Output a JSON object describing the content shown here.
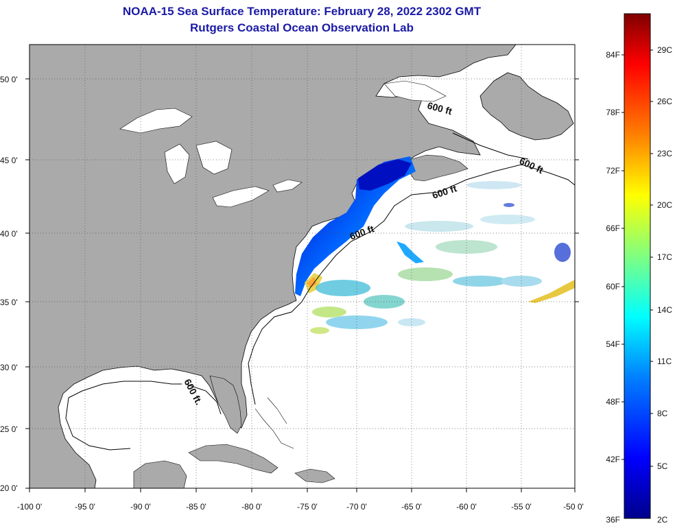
{
  "title": "NOAA-15 Sea Surface Temperature:  February 28, 2022 2302 GMT",
  "subtitle": "Rutgers Coastal Ocean Observation Lab",
  "map": {
    "lon_ticks": [
      "-100 0'",
      "-95 0'",
      "-90 0'",
      "-85 0'",
      "-80 0'",
      "-75 0'",
      "-70 0'",
      "-65 0'",
      "-60 0'",
      "-55 0'",
      "-50 0'"
    ],
    "lat_ticks": [
      "50 0'",
      "45 0'",
      "40 0'",
      "35 0'",
      "30 0'",
      "25 0'",
      "20 0'"
    ],
    "contour_labels": [
      "600 ft",
      "600 ft",
      "600 ft",
      "600 ft",
      "600 ft."
    ],
    "colors": {
      "land": "#aaaaaa",
      "ocean_nodata": "#ffffff",
      "grid": "#555555"
    }
  },
  "colorbar": {
    "fahrenheit_labels": [
      "84F",
      "78F",
      "72F",
      "66F",
      "60F",
      "54F",
      "48F",
      "42F",
      "36F"
    ],
    "celsius_labels": [
      "29C",
      "26C",
      "23C",
      "20C",
      "17C",
      "14C",
      "11C",
      "8C",
      "5C",
      "2C"
    ],
    "colors": [
      "#00008b",
      "#0000ff",
      "#0080ff",
      "#00ffff",
      "#80ff80",
      "#ffff00",
      "#ff8000",
      "#ff0000",
      "#800000"
    ]
  }
}
